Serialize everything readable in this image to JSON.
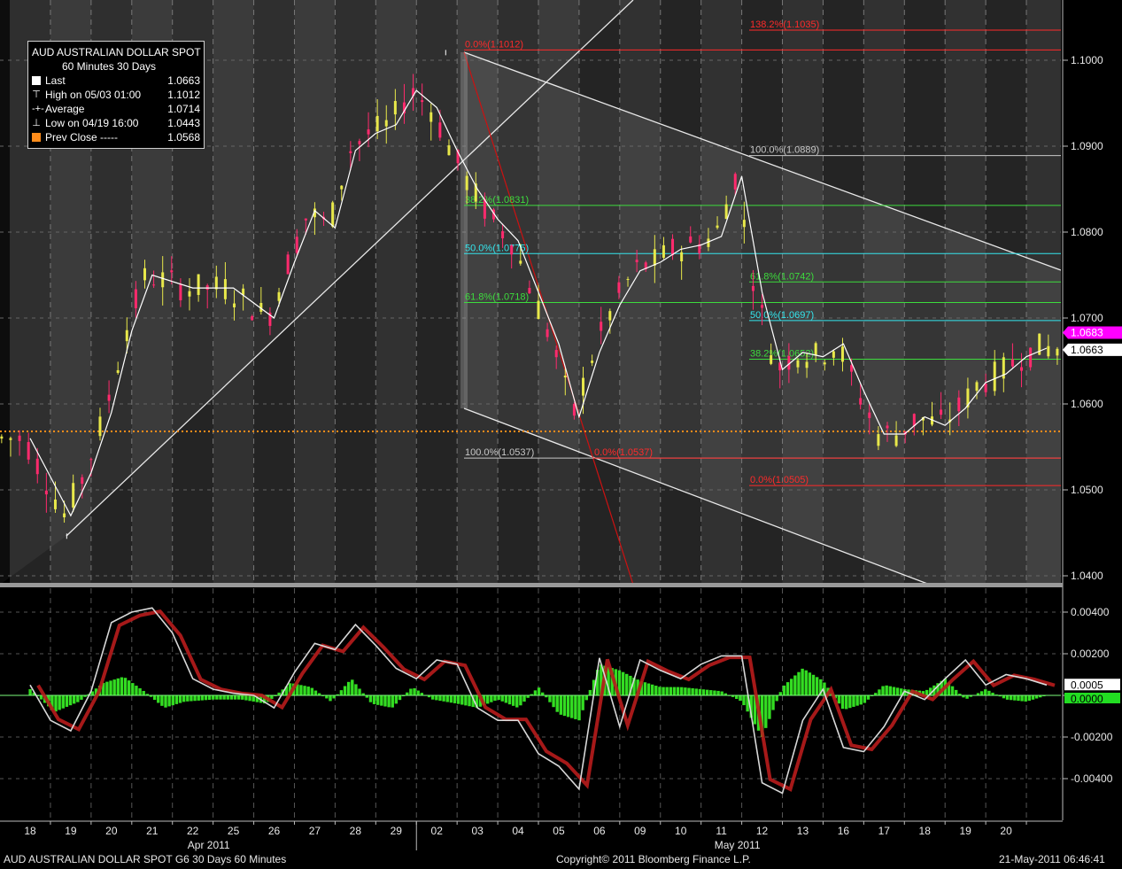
{
  "legend": {
    "title": "AUD  AUSTRALIAN DOLLAR SPOT",
    "subtitle": "60 Minutes  30 Days",
    "rows": [
      {
        "label": "Last",
        "value": "1.0663",
        "icon": "white-square-icon",
        "color": "#ffffff"
      },
      {
        "label": "High on 05/03 01:00",
        "value": "1.1012",
        "icon": "high-marker-icon",
        "color": "#ffffff"
      },
      {
        "label": "Average",
        "value": "1.0714",
        "icon": "average-line-icon",
        "color": "#ffffff"
      },
      {
        "label": "Low on 04/19 16:00",
        "value": "1.0443",
        "icon": "low-marker-icon",
        "color": "#ffffff"
      },
      {
        "label": "Prev Close -----",
        "value": "1.0568",
        "icon": "orange-square-icon",
        "color": "#ff8c1a"
      }
    ]
  },
  "footer": {
    "left": "AUD  AUSTRALIAN DOLLAR SPOT     G6    30 Days  60 Minutes",
    "center": "Copyright© 2011 Bloomberg Finance L.P.",
    "right": "21-May-2011 06:46:41"
  },
  "price_tags": {
    "pink": {
      "text": "1.0683",
      "color": "#ff00ff"
    },
    "white": {
      "text": "1.0663",
      "color": "#ffffff"
    }
  },
  "osc_tags": {
    "white": "0.0005",
    "green": "0.0000"
  },
  "colors": {
    "background": "#000000",
    "up_candle": "#e8e84a",
    "down_candle": "#ff2a6d",
    "average": "#ffffff",
    "prev_close": "#ff8c1a",
    "fib_red": "#ff2a2a",
    "fib_green": "#3ddc3d",
    "fib_cyan": "#34e6ee",
    "fib_gray": "#c8c8c8",
    "histogram": "#33dd22"
  },
  "chart_data": [
    {
      "type": "candlestick",
      "title": "AUD  AUSTRALIAN DOLLAR SPOT",
      "subtitle": "60 Minutes  30 Days",
      "xlabel": "",
      "ylabel": "",
      "ylim": [
        1.036,
        1.1068
      ],
      "yticks": [
        "1.0400",
        "1.0500",
        "1.0600",
        "1.0700",
        "1.0800",
        "1.0900",
        "1.1000"
      ],
      "x_categories": [
        "18",
        "19",
        "20",
        "21",
        "22",
        "25",
        "26",
        "27",
        "28",
        "29",
        "02",
        "03",
        "04",
        "05",
        "06",
        "09",
        "10",
        "11",
        "12",
        "13",
        "16",
        "17",
        "18",
        "19",
        "20"
      ],
      "month_labels": [
        {
          "label": "Apr 2011",
          "at": "22"
        },
        {
          "label": "May 2011",
          "at": "11"
        }
      ],
      "grid": true,
      "series": [
        {
          "name": "Average",
          "type": "line",
          "points": [
            [
              0,
              1.056
            ],
            [
              0.5,
              1.0515
            ],
            [
              1,
              1.047
            ],
            [
              1.5,
              1.052
            ],
            [
              2,
              1.059
            ],
            [
              2.5,
              1.0685
            ],
            [
              3,
              1.075
            ],
            [
              4,
              1.0735
            ],
            [
              5,
              1.0735
            ],
            [
              6,
              1.07
            ],
            [
              6.5,
              1.0765
            ],
            [
              7,
              1.0825
            ],
            [
              7.5,
              1.0805
            ],
            [
              8,
              1.0895
            ],
            [
              8.5,
              1.0915
            ],
            [
              9,
              1.0925
            ],
            [
              9.5,
              1.0965
            ],
            [
              10,
              1.0945
            ],
            [
              10.5,
              1.0895
            ],
            [
              11,
              1.085
            ],
            [
              11.5,
              1.0815
            ],
            [
              12,
              1.079
            ],
            [
              12.5,
              1.073
            ],
            [
              13,
              1.067
            ],
            [
              13.5,
              1.0585
            ],
            [
              14,
              1.066
            ],
            [
              14.5,
              1.0715
            ],
            [
              15,
              1.0755
            ],
            [
              15.5,
              1.0765
            ],
            [
              16,
              1.078
            ],
            [
              16.5,
              1.0785
            ],
            [
              17,
              1.0795
            ],
            [
              17.5,
              1.0865
            ],
            [
              18,
              1.073
            ],
            [
              18.5,
              1.064
            ],
            [
              19,
              1.066
            ],
            [
              19.5,
              1.0655
            ],
            [
              20,
              1.067
            ],
            [
              20.5,
              1.0615
            ],
            [
              21,
              1.0565
            ],
            [
              21.5,
              1.0565
            ],
            [
              22,
              1.0585
            ],
            [
              22.5,
              1.0575
            ],
            [
              23,
              1.0595
            ],
            [
              23.5,
              1.0625
            ],
            [
              24,
              1.0635
            ],
            [
              24.5,
              1.0655
            ],
            [
              25,
              1.0665
            ]
          ]
        },
        {
          "name": "Prev Close",
          "type": "hline",
          "value": 1.0568
        },
        {
          "name": "Last",
          "value": 1.0663
        },
        {
          "name": "High on 05/03 01:00",
          "value": 1.1012
        },
        {
          "name": "Low on 04/19 16:00",
          "value": 1.0443
        }
      ],
      "fibonacci": [
        {
          "label": "0.0%(1.1012)",
          "value": 1.1012,
          "color": "red"
        },
        {
          "label": "38.2%(1.0831)",
          "value": 1.0831,
          "color": "green"
        },
        {
          "label": "50.0%(1.0775)",
          "value": 1.0775,
          "color": "cyan"
        },
        {
          "label": "61.8%(1.0718)",
          "value": 1.0718,
          "color": "green"
        },
        {
          "label": "100.0%(1.0537)",
          "value": 1.0537,
          "color": "gray"
        },
        {
          "label": "0.0%(1.0537)",
          "value": 1.0537,
          "color": "red"
        },
        {
          "label": "138.2%(1.1035)",
          "value": 1.1035,
          "color": "red"
        },
        {
          "label": "100.0%(1.0889)",
          "value": 1.0889,
          "color": "gray"
        },
        {
          "label": "61.8%(1.0742)",
          "value": 1.0742,
          "color": "green"
        },
        {
          "label": "50.0%(1.0697)",
          "value": 1.0697,
          "color": "cyan"
        },
        {
          "label": "38.2%(1.0652)",
          "value": 1.0652,
          "color": "green"
        },
        {
          "label": "0.0%(1.0505)",
          "value": 1.0505,
          "color": "red"
        }
      ]
    },
    {
      "type": "line",
      "title": "",
      "xlabel": "",
      "ylabel": "",
      "ylim": [
        -0.006,
        0.0048
      ],
      "yticks": [
        "0.00400",
        "0.00200",
        "0.0000",
        "-0.00200",
        "-0.00400"
      ],
      "series": [
        {
          "name": "",
          "type": "line",
          "points": [
            [
              0,
              0.0005
            ],
            [
              0.5,
              -0.0012
            ],
            [
              1,
              -0.0017
            ],
            [
              1.5,
              0.0002
            ],
            [
              2,
              0.0035
            ],
            [
              2.5,
              0.004
            ],
            [
              3,
              0.0042
            ],
            [
              3.5,
              0.003
            ],
            [
              4,
              0.0008
            ],
            [
              4.5,
              0.0003
            ],
            [
              5,
              0.0001
            ],
            [
              5.5,
              0.0
            ],
            [
              6,
              -0.0006
            ],
            [
              6.5,
              0.0011
            ],
            [
              7,
              0.0025
            ],
            [
              7.5,
              0.0022
            ],
            [
              8,
              0.0034
            ],
            [
              8.5,
              0.0024
            ],
            [
              9,
              0.0013
            ],
            [
              9.5,
              0.0008
            ],
            [
              10,
              0.0017
            ],
            [
              10.5,
              0.0015
            ],
            [
              11,
              -0.0006
            ],
            [
              11.5,
              -0.0012
            ],
            [
              12,
              -0.0012
            ],
            [
              12.5,
              -0.0028
            ],
            [
              13,
              -0.0034
            ],
            [
              13.5,
              -0.0045
            ],
            [
              14,
              0.0018
            ],
            [
              14.5,
              -0.0015
            ],
            [
              15,
              0.0017
            ],
            [
              15.5,
              0.0012
            ],
            [
              16,
              0.0008
            ],
            [
              16.5,
              0.0015
            ],
            [
              17,
              0.0019
            ],
            [
              17.5,
              0.0019
            ],
            [
              18,
              -0.0042
            ],
            [
              18.5,
              -0.0047
            ],
            [
              19,
              -0.0012
            ],
            [
              19.5,
              0.0003
            ],
            [
              20,
              -0.0025
            ],
            [
              20.5,
              -0.0027
            ],
            [
              21,
              -0.0015
            ],
            [
              21.5,
              0.0002
            ],
            [
              22,
              -0.0002
            ],
            [
              22.5,
              0.0008
            ],
            [
              23,
              0.0017
            ],
            [
              23.5,
              0.0005
            ],
            [
              24,
              0.001
            ],
            [
              24.5,
              0.0008
            ],
            [
              25,
              0.0005
            ]
          ]
        },
        {
          "name": "",
          "type": "histogram",
          "points": [
            [
              0,
              0.0003
            ],
            [
              0.6,
              -0.0008
            ],
            [
              1.2,
              -0.0003
            ],
            [
              1.8,
              0.0006
            ],
            [
              2.3,
              0.0009
            ],
            [
              2.8,
              0.0002
            ],
            [
              3.3,
              -0.0006
            ],
            [
              3.8,
              -0.0003
            ],
            [
              4.5,
              -0.0002
            ],
            [
              5.2,
              -0.0002
            ],
            [
              5.8,
              -0.0004
            ],
            [
              6.4,
              0.0006
            ],
            [
              6.9,
              0.0004
            ],
            [
              7.4,
              -0.0003
            ],
            [
              7.9,
              0.0008
            ],
            [
              8.4,
              -0.0004
            ],
            [
              8.9,
              -0.0006
            ],
            [
              9.4,
              0.0004
            ],
            [
              9.9,
              -0.0002
            ],
            [
              10.5,
              -0.0004
            ],
            [
              11,
              -0.0006
            ],
            [
              11.5,
              -0.0002
            ],
            [
              12,
              -0.0006
            ],
            [
              12.5,
              0.0004
            ],
            [
              13,
              -0.0009
            ],
            [
              13.5,
              -0.0012
            ],
            [
              14,
              0.0015
            ],
            [
              14.5,
              0.0012
            ],
            [
              15,
              0.0007
            ],
            [
              15.5,
              0.0004
            ],
            [
              16,
              0.0004
            ],
            [
              16.5,
              0.0003
            ],
            [
              17,
              0.0002
            ],
            [
              17.5,
              -0.0003
            ],
            [
              18,
              -0.002
            ],
            [
              18.5,
              0.0004
            ],
            [
              19,
              0.0013
            ],
            [
              19.5,
              0.0007
            ],
            [
              20,
              -0.0007
            ],
            [
              20.5,
              -0.0004
            ],
            [
              21,
              0.0005
            ],
            [
              21.5,
              0.0003
            ],
            [
              22,
              0.0002
            ],
            [
              22.5,
              0.0008
            ],
            [
              23,
              -0.0002
            ],
            [
              23.5,
              0.0003
            ],
            [
              24,
              -0.0002
            ],
            [
              24.5,
              -0.0003
            ],
            [
              25,
              0.0
            ]
          ]
        }
      ]
    }
  ]
}
